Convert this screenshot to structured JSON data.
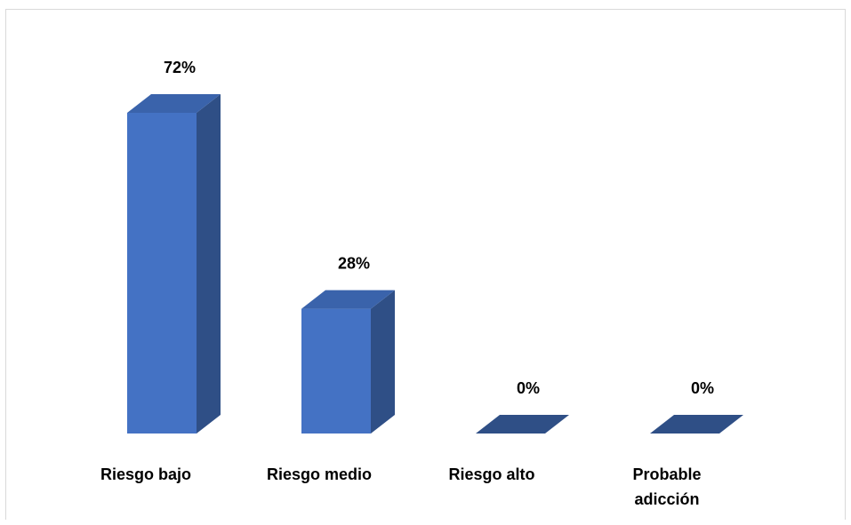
{
  "chart_data": {
    "type": "bar",
    "style": "3d-column",
    "categories": [
      "Riesgo bajo",
      "Riesgo medio",
      "Riesgo alto",
      "Probable adicción"
    ],
    "values": [
      72,
      28,
      0,
      0
    ],
    "data_labels": [
      "72%",
      "28%",
      "0%",
      "0%"
    ],
    "ylim": [
      0,
      72
    ],
    "grid": false,
    "legend": "none",
    "colors": {
      "front": "#4472c4",
      "side": "#2f4f86",
      "top": "#3a63ab"
    }
  }
}
